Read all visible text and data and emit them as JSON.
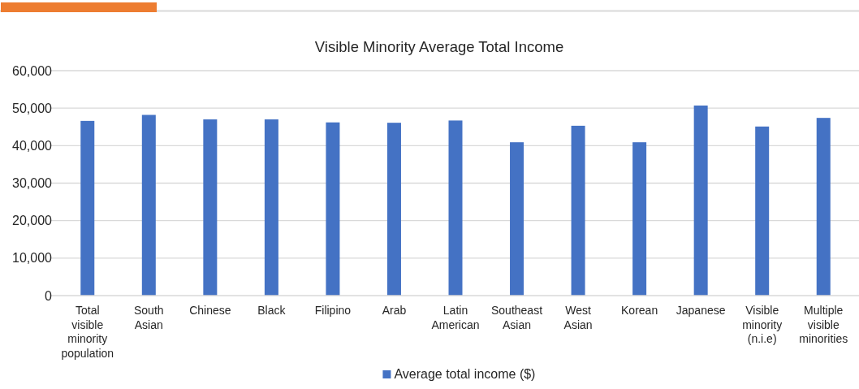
{
  "chart_data": {
    "type": "bar",
    "title": "Visible Minority Average Total Income",
    "categories": [
      "Total visible minority population",
      "South Asian",
      "Chinese",
      "Black",
      "Filipino",
      "Arab",
      "Latin American",
      "Southeast Asian",
      "West Asian",
      "Korean",
      "Japanese",
      "Visible minority (n.i.e)",
      "Multiple visible minorities"
    ],
    "series": [
      {
        "name": "Average total income ($)",
        "color": "#4472c4",
        "values": [
          46600,
          48200,
          47000,
          47000,
          46200,
          46100,
          46700,
          40900,
          45300,
          40900,
          50700,
          45100,
          47400
        ]
      }
    ],
    "ylim": [
      0,
      60000
    ],
    "yticks": [
      0,
      {
        "value": 10000,
        "label": "10,000"
      },
      {
        "value": 20000,
        "label": "20,000"
      },
      {
        "value": 30000,
        "label": "30,000"
      },
      {
        "value": 40000,
        "label": "40,000"
      },
      {
        "value": 50000,
        "label": "50,000"
      },
      {
        "value": 60000,
        "label": "60,000"
      }
    ],
    "grid": "y",
    "legend": "bottom"
  }
}
